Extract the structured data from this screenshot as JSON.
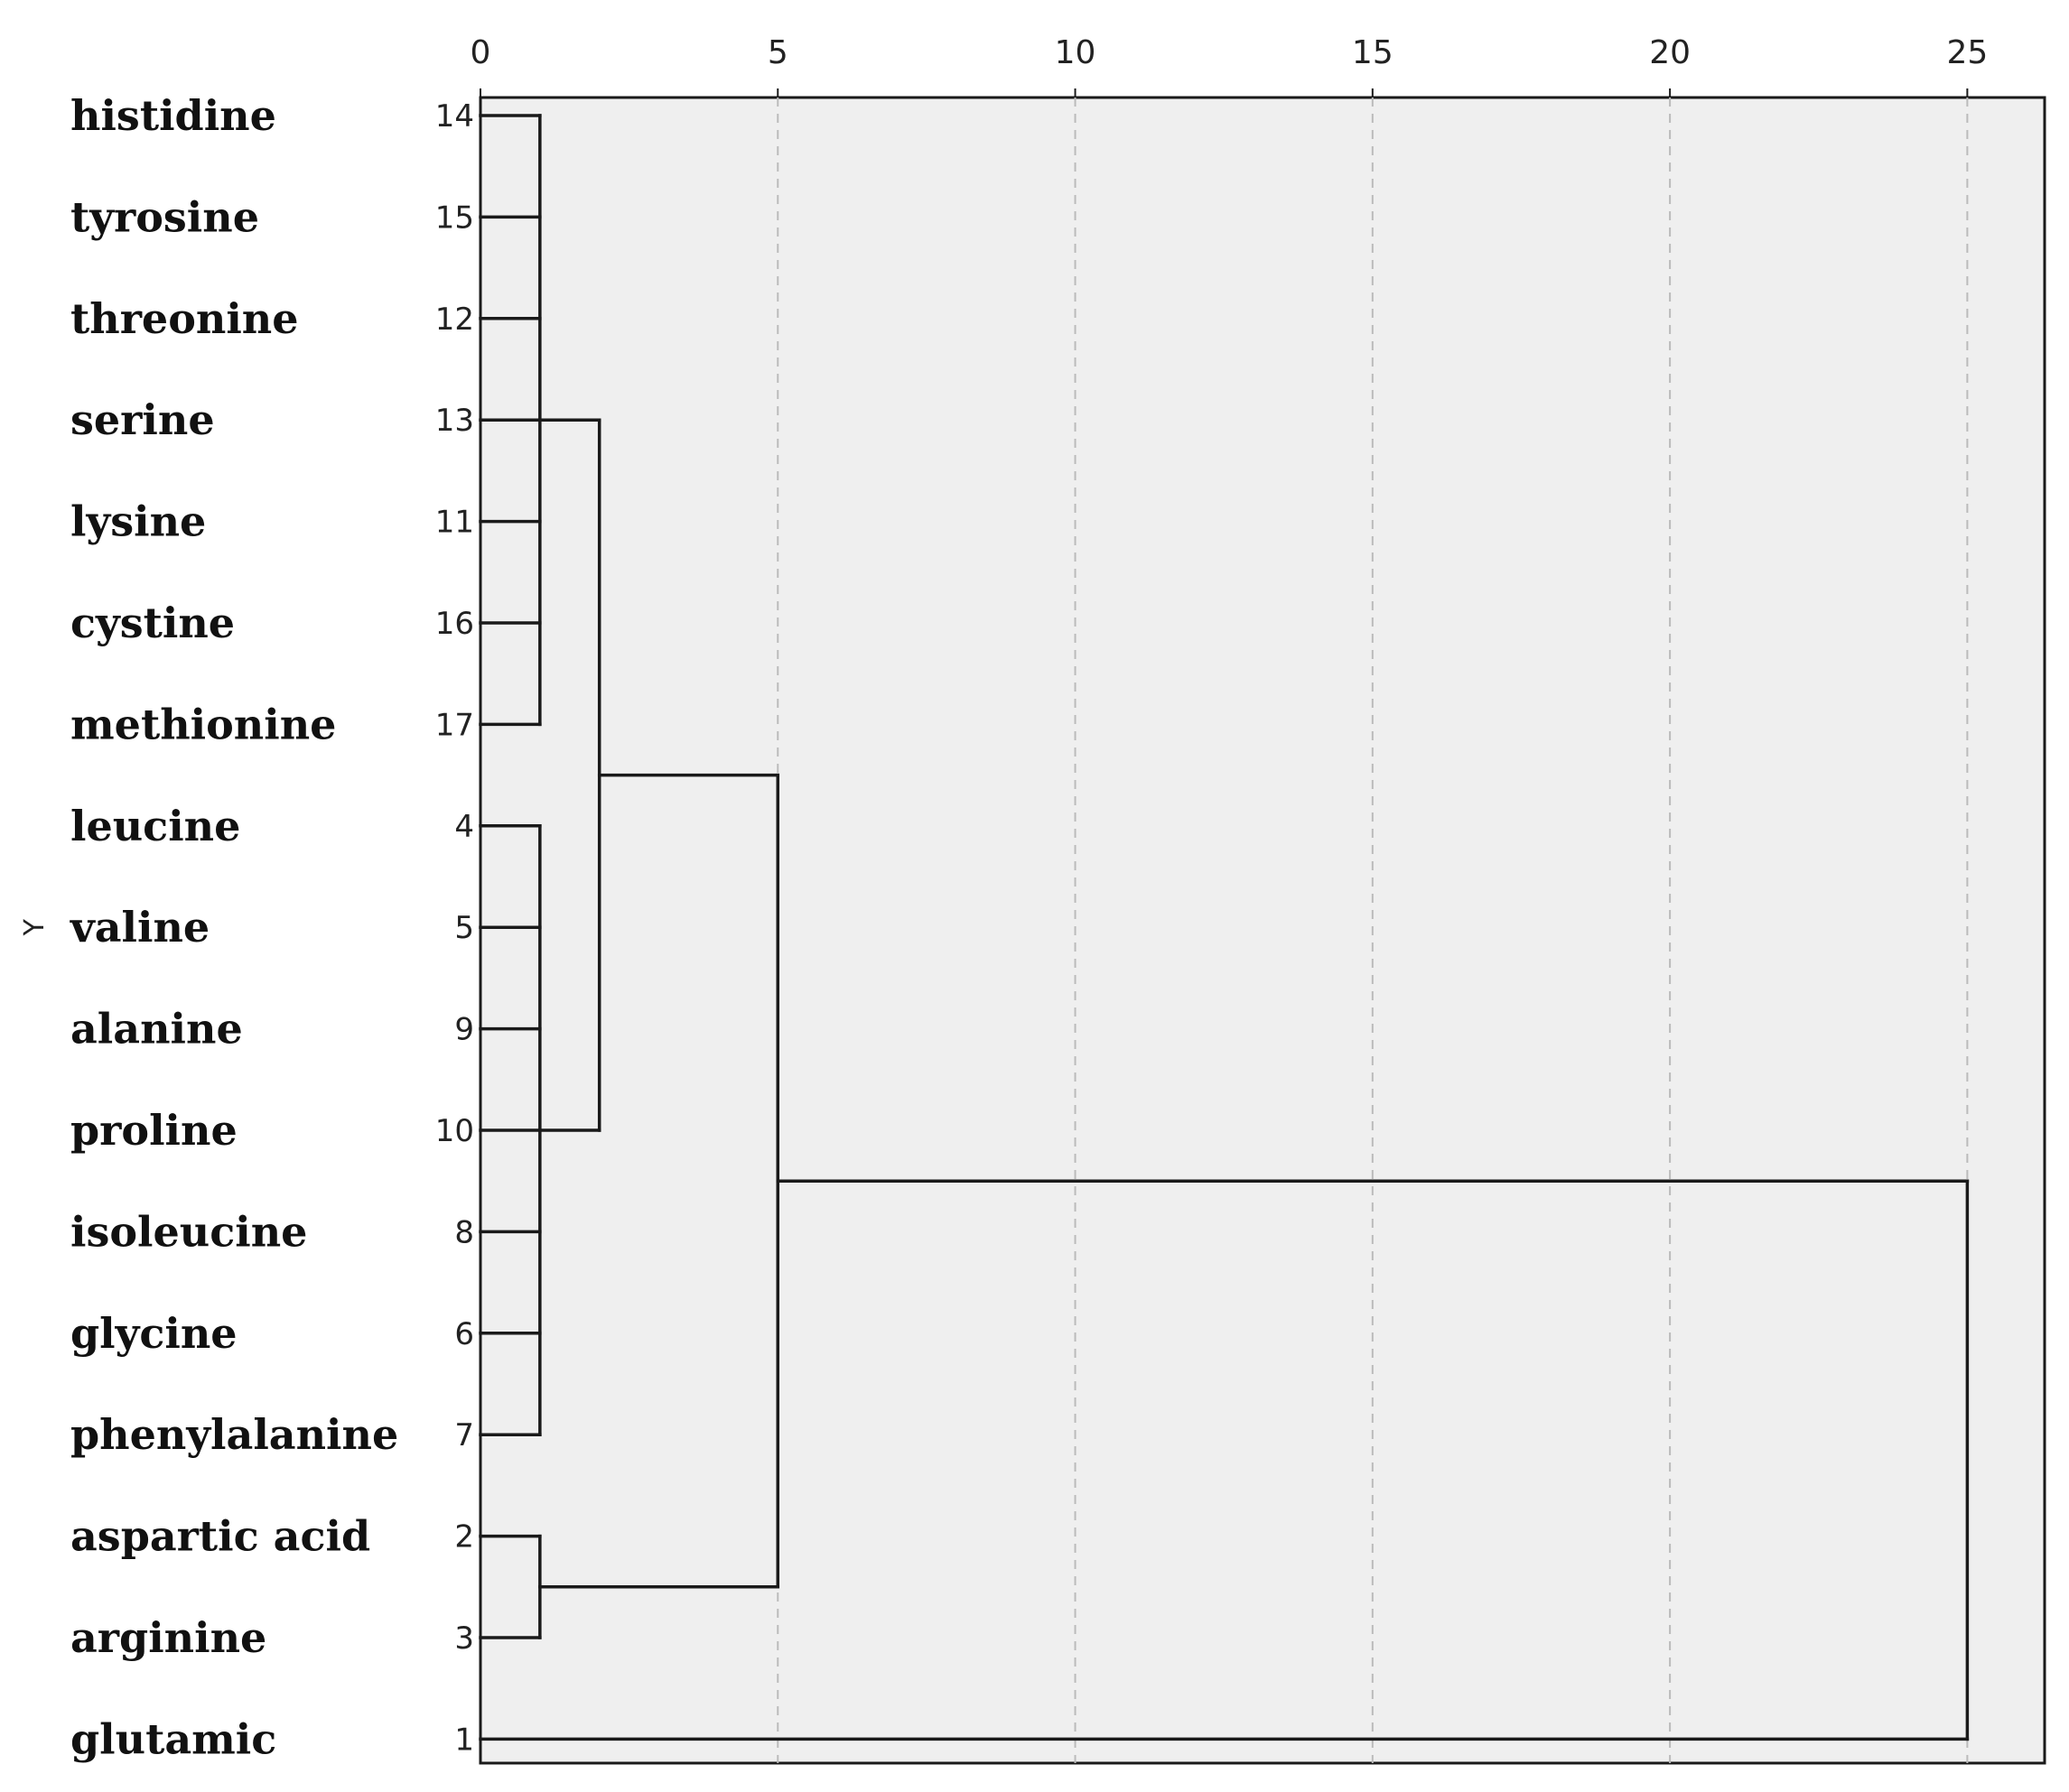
{
  "chart_data": {
    "type": "dendrogram",
    "title": "",
    "ylabel": "Y",
    "xlabel": "",
    "xlim": [
      0,
      26.3
    ],
    "x_ticks": [
      0,
      5,
      10,
      15,
      20,
      25
    ],
    "x_tick_labels": [
      "0",
      "5",
      "10",
      "15",
      "20",
      "25"
    ],
    "grid": "vertical dashed lines at ticks",
    "colors": {
      "plot_background": "#efefef",
      "line": "#1a1a1a",
      "grid": "#bbbbbb"
    },
    "cases": [
      {
        "label": "histidine",
        "number": "14"
      },
      {
        "label": "tyrosine",
        "number": "15"
      },
      {
        "label": "threonine",
        "number": "12"
      },
      {
        "label": "serine",
        "number": "13"
      },
      {
        "label": "lysine",
        "number": "11"
      },
      {
        "label": "cystine",
        "number": "16"
      },
      {
        "label": "methionine",
        "number": "17"
      },
      {
        "label": "leucine",
        "number": "4"
      },
      {
        "label": "valine",
        "number": "5"
      },
      {
        "label": "alanine",
        "number": "9"
      },
      {
        "label": "proline",
        "number": "10"
      },
      {
        "label": "isoleucine",
        "number": "8"
      },
      {
        "label": "glycine",
        "number": "6"
      },
      {
        "label": "phenylalanine",
        "number": "7"
      },
      {
        "label": "aspartic acid",
        "number": "2"
      },
      {
        "label": "arginine",
        "number": "3"
      },
      {
        "label": "glutamic",
        "number": "1"
      }
    ],
    "merges": [
      {
        "id": "A",
        "children": [
          0,
          1,
          2,
          3,
          4,
          5,
          6
        ],
        "distance": 1
      },
      {
        "id": "B",
        "children": [
          7,
          8,
          9,
          10,
          11,
          12,
          13
        ],
        "distance": 1
      },
      {
        "id": "C",
        "children": [
          14,
          15
        ],
        "distance": 1
      },
      {
        "id": "D",
        "children": [
          "A",
          "B"
        ],
        "distance": 2
      },
      {
        "id": "E",
        "children": [
          "D",
          "C"
        ],
        "distance": 5
      },
      {
        "id": "F",
        "children": [
          "E",
          16
        ],
        "distance": 25
      }
    ]
  }
}
